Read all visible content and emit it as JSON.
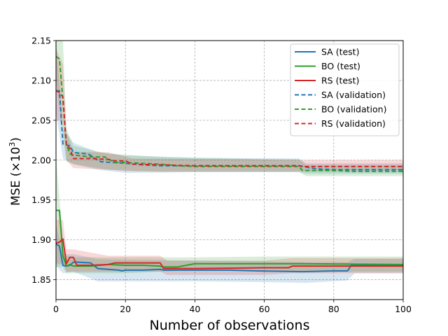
{
  "chart_data": {
    "type": "line",
    "title": "",
    "xlabel": "Number of observations",
    "ylabel_main": "MSE (×10",
    "ylabel_sup": "3",
    "ylabel_close": ")",
    "xlim": [
      0,
      100
    ],
    "ylim": [
      1.825,
      2.15
    ],
    "xticks": [
      0,
      20,
      40,
      60,
      80,
      100
    ],
    "yticks": [
      1.85,
      1.9,
      1.95,
      2.0,
      2.05,
      2.1,
      2.15
    ],
    "ytick_labels": [
      "1.85",
      "1.90",
      "1.95",
      "2.00",
      "2.05",
      "2.10",
      "2.15"
    ],
    "grid": true,
    "legend_position": "top-right",
    "colors": {
      "SA": "#1f77b4",
      "BO": "#2ca02c",
      "RS": "#d62728"
    },
    "series": [
      {
        "name": "SA (test)",
        "color": "#1f77b4",
        "dash": false,
        "points": [
          [
            0,
            1.895
          ],
          [
            1,
            1.892
          ],
          [
            2,
            1.868
          ],
          [
            3,
            1.867
          ],
          [
            4,
            1.868
          ],
          [
            5,
            1.872
          ],
          [
            6,
            1.872
          ],
          [
            10,
            1.871
          ],
          [
            12,
            1.864
          ],
          [
            15,
            1.863
          ],
          [
            18,
            1.862
          ],
          [
            19,
            1.861
          ],
          [
            20,
            1.862
          ],
          [
            25,
            1.862
          ],
          [
            30,
            1.863
          ],
          [
            31,
            1.862
          ],
          [
            40,
            1.862
          ],
          [
            50,
            1.862
          ],
          [
            58,
            1.861
          ],
          [
            71,
            1.86
          ],
          [
            80,
            1.861
          ],
          [
            84,
            1.861
          ],
          [
            85,
            1.868
          ],
          [
            100,
            1.868
          ]
        ],
        "band": [
          [
            0,
            1.867,
            1.92
          ],
          [
            2,
            1.858,
            1.882
          ],
          [
            5,
            1.86,
            1.882
          ],
          [
            12,
            1.848,
            1.876
          ],
          [
            20,
            1.848,
            1.875
          ],
          [
            40,
            1.848,
            1.874
          ],
          [
            60,
            1.847,
            1.873
          ],
          [
            72,
            1.846,
            1.872
          ],
          [
            84,
            1.849,
            1.872
          ],
          [
            86,
            1.858,
            1.876
          ],
          [
            100,
            1.858,
            1.876
          ]
        ]
      },
      {
        "name": "BO (test)",
        "color": "#2ca02c",
        "dash": false,
        "points": [
          [
            0,
            1.937
          ],
          [
            1,
            1.937
          ],
          [
            2,
            1.88
          ],
          [
            3,
            1.867
          ],
          [
            4,
            1.869
          ],
          [
            5,
            1.867
          ],
          [
            10,
            1.867
          ],
          [
            15,
            1.869
          ],
          [
            20,
            1.868
          ],
          [
            25,
            1.868
          ],
          [
            30,
            1.867
          ],
          [
            31,
            1.866
          ],
          [
            35,
            1.866
          ],
          [
            40,
            1.87
          ],
          [
            60,
            1.87
          ],
          [
            70,
            1.87
          ],
          [
            100,
            1.869
          ]
        ],
        "band": [
          [
            0,
            1.866,
            2.005
          ],
          [
            2,
            1.866,
            1.9
          ],
          [
            3,
            1.858,
            1.88
          ],
          [
            5,
            1.858,
            1.878
          ],
          [
            20,
            1.858,
            1.878
          ],
          [
            40,
            1.862,
            1.878
          ],
          [
            60,
            1.862,
            1.879
          ],
          [
            72,
            1.86,
            1.879
          ],
          [
            100,
            1.86,
            1.879
          ]
        ]
      },
      {
        "name": "RS (test)",
        "color": "#d62728",
        "dash": false,
        "points": [
          [
            0,
            1.896
          ],
          [
            1,
            1.897
          ],
          [
            2,
            1.901
          ],
          [
            3,
            1.87
          ],
          [
            4,
            1.878
          ],
          [
            5,
            1.878
          ],
          [
            6,
            1.868
          ],
          [
            10,
            1.868
          ],
          [
            15,
            1.869
          ],
          [
            17,
            1.871
          ],
          [
            25,
            1.871
          ],
          [
            30,
            1.871
          ],
          [
            31,
            1.864
          ],
          [
            40,
            1.864
          ],
          [
            60,
            1.865
          ],
          [
            67,
            1.865
          ],
          [
            68,
            1.867
          ],
          [
            100,
            1.867
          ]
        ],
        "band": [
          [
            0,
            1.87,
            1.925
          ],
          [
            2,
            1.87,
            1.925
          ],
          [
            3,
            1.86,
            1.888
          ],
          [
            5,
            1.86,
            1.888
          ],
          [
            15,
            1.86,
            1.88
          ],
          [
            30,
            1.86,
            1.88
          ],
          [
            32,
            1.856,
            1.874
          ],
          [
            60,
            1.856,
            1.874
          ],
          [
            68,
            1.858,
            1.877
          ],
          [
            100,
            1.858,
            1.877
          ]
        ]
      },
      {
        "name": "SA (validation)",
        "color": "#1f77b4",
        "dash": true,
        "points": [
          [
            0,
            2.087
          ],
          [
            1,
            2.087
          ],
          [
            2,
            2.02
          ],
          [
            3,
            2.019
          ],
          [
            4,
            2.018
          ],
          [
            5,
            2.01
          ],
          [
            6,
            2.009
          ],
          [
            9,
            2.008
          ],
          [
            10,
            2.006
          ],
          [
            12,
            2.0
          ],
          [
            13,
            1.998
          ],
          [
            20,
            1.996
          ],
          [
            25,
            1.994
          ],
          [
            30,
            1.993
          ],
          [
            40,
            1.993
          ],
          [
            50,
            1.993
          ],
          [
            60,
            1.993
          ],
          [
            70,
            1.993
          ],
          [
            75,
            1.989
          ],
          [
            80,
            1.988
          ],
          [
            100,
            1.988
          ]
        ],
        "band": [
          [
            0,
            2.06,
            2.15
          ],
          [
            2,
            2.002,
            2.04
          ],
          [
            5,
            1.995,
            2.022
          ],
          [
            12,
            1.988,
            2.01
          ],
          [
            20,
            1.984,
            2.006
          ],
          [
            40,
            1.985,
            2.003
          ],
          [
            70,
            1.985,
            2.002
          ],
          [
            72,
            1.983,
            1.996
          ],
          [
            100,
            1.983,
            1.996
          ]
        ]
      },
      {
        "name": "BO (validation)",
        "color": "#2ca02c",
        "dash": true,
        "points": [
          [
            0,
            2.13
          ],
          [
            1,
            2.127
          ],
          [
            2,
            2.075
          ],
          [
            3,
            2.02
          ],
          [
            4,
            2.008
          ],
          [
            5,
            2.006
          ],
          [
            6,
            2.006
          ],
          [
            10,
            2.004
          ],
          [
            14,
            2.004
          ],
          [
            17,
            1.997
          ],
          [
            20,
            1.997
          ],
          [
            25,
            1.996
          ],
          [
            30,
            1.995
          ],
          [
            35,
            1.993
          ],
          [
            40,
            1.992
          ],
          [
            50,
            1.992
          ],
          [
            60,
            1.992
          ],
          [
            70,
            1.992
          ],
          [
            71,
            1.987
          ],
          [
            80,
            1.987
          ],
          [
            85,
            1.986
          ],
          [
            100,
            1.986
          ]
        ],
        "band": [
          [
            0,
            2.1,
            2.15
          ],
          [
            2,
            2.03,
            2.15
          ],
          [
            3,
            1.998,
            2.04
          ],
          [
            5,
            1.995,
            2.018
          ],
          [
            15,
            1.988,
            2.008
          ],
          [
            30,
            1.985,
            2.004
          ],
          [
            60,
            1.985,
            2.001
          ],
          [
            70,
            1.985,
            2.001
          ],
          [
            72,
            1.98,
            1.994
          ],
          [
            100,
            1.98,
            1.994
          ]
        ]
      },
      {
        "name": "RS (validation)",
        "color": "#d62728",
        "dash": true,
        "points": [
          [
            0,
            2.087
          ],
          [
            1,
            2.085
          ],
          [
            2,
            2.079
          ],
          [
            3,
            2.018
          ],
          [
            4,
            2.015
          ],
          [
            5,
            2.002
          ],
          [
            10,
            2.002
          ],
          [
            15,
            2.001
          ],
          [
            17,
            1.999
          ],
          [
            20,
            1.999
          ],
          [
            22,
            1.995
          ],
          [
            30,
            1.994
          ],
          [
            40,
            1.993
          ],
          [
            60,
            1.993
          ],
          [
            70,
            1.993
          ],
          [
            71,
            1.992
          ],
          [
            100,
            1.992
          ]
        ],
        "band": [
          [
            0,
            2.05,
            2.14
          ],
          [
            2,
            2.05,
            2.12
          ],
          [
            3,
            2.0,
            2.035
          ],
          [
            5,
            1.99,
            2.01
          ],
          [
            15,
            1.988,
            2.01
          ],
          [
            22,
            1.986,
            2.002
          ],
          [
            60,
            1.986,
            2.001
          ],
          [
            71,
            1.986,
            2.0
          ],
          [
            100,
            1.986,
            2.0
          ]
        ]
      }
    ]
  }
}
